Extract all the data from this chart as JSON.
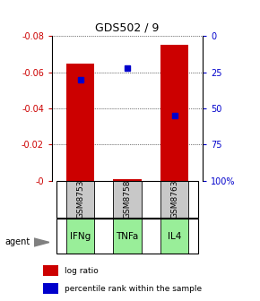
{
  "title": "GDS502 / 9",
  "samples": [
    "GSM8753",
    "GSM8758",
    "GSM8763"
  ],
  "agents": [
    "IFNg",
    "TNFa",
    "IL4"
  ],
  "log_ratios": [
    -0.065,
    -0.001,
    -0.075
  ],
  "percentile_ranks": [
    0.3,
    0.22,
    0.55
  ],
  "ylim_left": [
    0.0,
    -0.08
  ],
  "ylim_right": [
    1.0,
    0.0
  ],
  "yticks_left": [
    0.0,
    -0.02,
    -0.04,
    -0.06,
    -0.08
  ],
  "yticks_right": [
    1.0,
    0.75,
    0.5,
    0.25,
    0.0
  ],
  "ytick_labels_left": [
    "-0",
    "-0.02",
    "-0.04",
    "-0.06",
    "-0.08"
  ],
  "ytick_labels_right": [
    "100%",
    "75",
    "50",
    "25",
    "0"
  ],
  "bar_color": "#cc0000",
  "dot_color": "#0000cc",
  "sample_bg_color": "#c8c8c8",
  "agent_bg_color": "#99ee99",
  "legend_bar_label": "log ratio",
  "legend_dot_label": "percentile rank within the sample",
  "agent_label": "agent",
  "bar_width": 0.6
}
